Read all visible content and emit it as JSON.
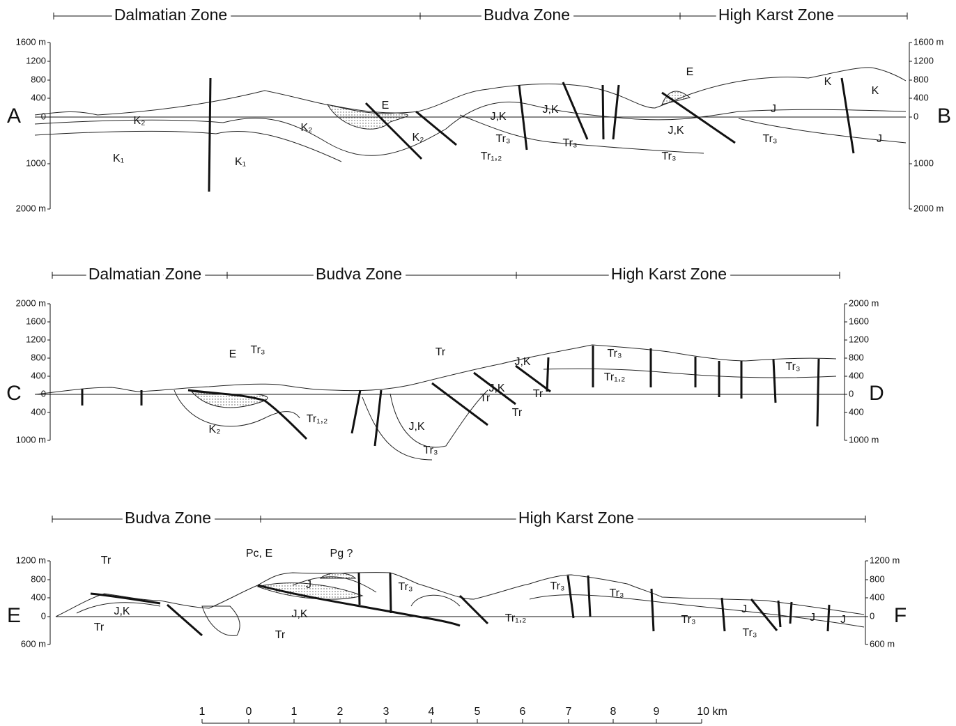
{
  "sections": [
    {
      "zones": [
        "Dalmatian Zone",
        "Budva Zone",
        "High Karst Zone"
      ],
      "left_axis": [
        "1600 m",
        "1200",
        "800",
        "400",
        "0",
        "1000",
        "2000 m"
      ],
      "right_axis": [
        "1600 m",
        "1200",
        "800",
        "400",
        "0",
        "1000",
        "2000 m"
      ],
      "ends": [
        "A",
        "B"
      ],
      "units": [
        "K₂",
        "K₂",
        "E",
        "K₂",
        "J,K",
        "Tr₃",
        "Tr₁,₂",
        "J,K",
        "Tr₃",
        "E",
        "J",
        "J,K",
        "Tr₃",
        "Tr₃",
        "K",
        "K",
        "J",
        "K₁",
        "K₁"
      ]
    },
    {
      "zones": [
        "Dalmatian Zone",
        "Budva Zone",
        "High Karst Zone"
      ],
      "left_axis": [
        "2000 m",
        "1600",
        "1200",
        "800",
        "400",
        "0",
        "400",
        "1000 m"
      ],
      "right_axis": [
        "2000 m",
        "1600",
        "1200",
        "800",
        "400",
        "0",
        "400",
        "1000 m"
      ],
      "ends": [
        "C",
        "D"
      ],
      "units": [
        "Tr₃",
        "E",
        "K₂",
        "Tr₁,₂",
        "J,K",
        "Tr₃",
        "Tr",
        "J,K",
        "J,K",
        "Tr",
        "Tr",
        "Tr",
        "Tr₃",
        "Tr₁,₂",
        "Tr₃"
      ]
    },
    {
      "zones": [
        "Budva Zone",
        "High Karst Zone"
      ],
      "left_axis": [
        "1200 m",
        "800",
        "400",
        "0",
        "600 m"
      ],
      "right_axis": [
        "1200 m",
        "800",
        "400",
        "0",
        "600 m"
      ],
      "ends": [
        "E",
        "F"
      ],
      "units": [
        "Tr",
        "J,K",
        "Tr",
        "Pc, E",
        "Pg ?",
        "J",
        "Tr₃",
        "J,K",
        "Tr",
        "Tr₃",
        "Tr₃",
        "Tr₁,₂",
        "Tr₃",
        "J",
        "Tr₃",
        "J",
        "J"
      ]
    }
  ],
  "scale": [
    "1",
    "0",
    "1",
    "2",
    "3",
    "4",
    "5",
    "6",
    "7",
    "8",
    "9",
    "10 km"
  ]
}
